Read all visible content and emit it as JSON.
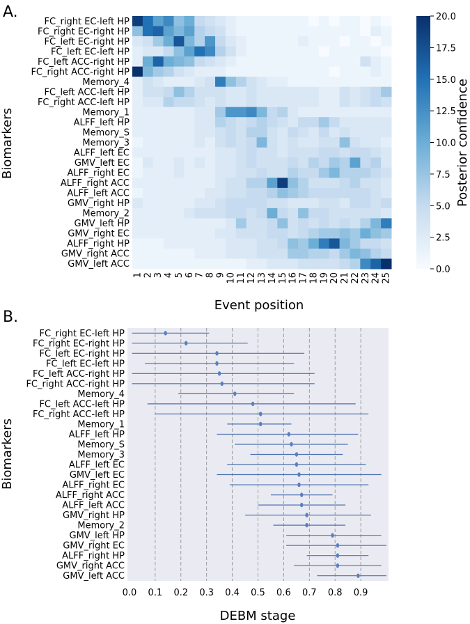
{
  "panel_labels": [
    "A.",
    "B."
  ],
  "chart_data": [
    {
      "type": "heatmap",
      "panel": "A.",
      "xlabel": "Event position",
      "ylabel": "Biomarkers",
      "colorbar_label": "Posterior confidence",
      "colorbar_range": [
        0,
        20
      ],
      "colorbar_ticks": [
        "0.0",
        "2.5",
        "5.0",
        "7.5",
        "10.0",
        "12.5",
        "15.0",
        "17.5",
        "20.0"
      ],
      "x_ticks": [
        "1",
        "2",
        "3",
        "4",
        "5",
        "6",
        "7",
        "8",
        "9",
        "10",
        "11",
        "12",
        "13",
        "14",
        "15",
        "16",
        "17",
        "18",
        "19",
        "20",
        "21",
        "22",
        "23",
        "24",
        "25"
      ],
      "biomarkers": [
        "FC_right EC-left HP",
        "FC_right EC-right HP",
        "FC_left EC-right HP",
        "FC_left EC-left HP",
        "FC_left ACC-right HP",
        "FC_right ACC-right HP",
        "Memory_4",
        "FC_left ACC-left HP",
        "FC_right ACC-left HP",
        "Memory_1",
        "ALFF_left HP",
        "Memory_S",
        "Memory_3",
        "ALFF_left EC",
        "GMV_left EC",
        "ALFF_right EC",
        "ALFF_right ACC",
        "ALFF_left ACC",
        "GMV_right HP",
        "Memory_2",
        "GMV_left HP",
        "GMV_right EC",
        "ALFF_right HP",
        "GMV_right ACC",
        "GMV_left ACC"
      ],
      "values": [
        [
          19,
          15,
          11,
          13,
          8,
          10,
          5,
          4,
          3,
          2,
          1,
          1,
          1,
          1,
          1,
          1,
          1,
          0,
          1,
          0,
          1,
          1,
          0,
          1,
          0
        ],
        [
          8,
          15,
          16,
          11,
          9,
          11,
          6,
          5,
          4,
          2,
          1,
          1,
          1,
          1,
          1,
          1,
          1,
          1,
          1,
          1,
          1,
          1,
          0,
          2,
          1
        ],
        [
          3,
          4,
          7,
          10,
          17,
          9,
          6,
          12,
          5,
          3,
          2,
          1,
          1,
          1,
          1,
          1,
          2,
          1,
          1,
          1,
          0,
          1,
          1,
          0,
          1
        ],
        [
          2,
          3,
          3,
          5,
          8,
          11,
          15,
          13,
          6,
          4,
          2,
          1,
          1,
          1,
          1,
          1,
          1,
          1,
          0,
          1,
          1,
          1,
          1,
          1,
          0
        ],
        [
          2,
          10,
          16,
          10,
          9,
          8,
          5,
          4,
          3,
          2,
          1,
          1,
          1,
          1,
          1,
          1,
          1,
          1,
          1,
          1,
          1,
          1,
          4,
          2,
          1
        ],
        [
          20,
          9,
          7,
          6,
          4,
          3,
          2,
          2,
          2,
          1,
          1,
          1,
          1,
          1,
          1,
          1,
          1,
          1,
          1,
          0,
          1,
          1,
          1,
          2,
          1
        ],
        [
          2,
          4,
          3,
          2,
          2,
          2,
          3,
          4,
          14,
          8,
          6,
          4,
          3,
          2,
          2,
          1,
          1,
          1,
          1,
          1,
          1,
          1,
          1,
          1,
          1
        ],
        [
          2,
          4,
          4,
          5,
          8,
          6,
          4,
          4,
          4,
          3,
          3,
          4,
          3,
          3,
          3,
          3,
          3,
          3,
          2,
          2,
          4,
          3,
          4,
          5,
          7
        ],
        [
          2,
          3,
          3,
          6,
          5,
          5,
          4,
          3,
          4,
          3,
          3,
          4,
          3,
          3,
          3,
          3,
          3,
          3,
          2,
          2,
          4,
          3,
          4,
          5,
          4
        ],
        [
          2,
          2,
          2,
          2,
          2,
          2,
          3,
          3,
          7,
          12,
          12,
          13,
          9,
          5,
          6,
          3,
          2,
          2,
          2,
          2,
          2,
          2,
          2,
          2,
          2
        ],
        [
          2,
          2,
          2,
          2,
          2,
          2,
          3,
          3,
          6,
          5,
          4,
          5,
          6,
          5,
          4,
          3,
          5,
          5,
          7,
          5,
          3,
          3,
          3,
          3,
          3
        ],
        [
          2,
          2,
          2,
          2,
          2,
          2,
          3,
          3,
          4,
          5,
          4,
          6,
          6,
          4,
          3,
          5,
          4,
          3,
          5,
          3,
          4,
          3,
          3,
          3,
          3
        ],
        [
          1,
          2,
          2,
          2,
          2,
          2,
          3,
          2,
          4,
          5,
          4,
          5,
          9,
          4,
          3,
          4,
          3,
          3,
          4,
          4,
          8,
          4,
          3,
          3,
          2
        ],
        [
          2,
          2,
          2,
          2,
          2,
          2,
          2,
          2,
          3,
          3,
          4,
          5,
          4,
          4,
          3,
          4,
          4,
          4,
          5,
          5,
          4,
          5,
          5,
          4,
          3
        ],
        [
          1,
          3,
          2,
          2,
          3,
          2,
          3,
          2,
          3,
          3,
          4,
          5,
          4,
          4,
          4,
          5,
          4,
          6,
          5,
          7,
          6,
          11,
          5,
          6,
          3
        ],
        [
          1,
          2,
          2,
          2,
          3,
          2,
          2,
          2,
          3,
          3,
          4,
          4,
          5,
          4,
          4,
          6,
          5,
          5,
          7,
          9,
          6,
          6,
          6,
          5,
          4
        ],
        [
          2,
          2,
          2,
          2,
          2,
          2,
          2,
          2,
          3,
          4,
          4,
          6,
          6,
          11,
          19,
          8,
          6,
          4,
          4,
          4,
          5,
          6,
          4,
          4,
          3
        ],
        [
          1,
          2,
          2,
          2,
          2,
          2,
          2,
          3,
          3,
          4,
          4,
          5,
          5,
          6,
          8,
          7,
          6,
          5,
          5,
          5,
          5,
          5,
          5,
          4,
          3
        ],
        [
          3,
          2,
          2,
          2,
          2,
          2,
          3,
          3,
          4,
          5,
          5,
          5,
          5,
          4,
          4,
          3,
          3,
          3,
          4,
          4,
          3,
          5,
          5,
          4,
          5
        ],
        [
          2,
          2,
          2,
          2,
          2,
          3,
          4,
          4,
          4,
          5,
          5,
          4,
          5,
          10,
          5,
          4,
          8,
          5,
          5,
          4,
          4,
          4,
          4,
          4,
          3
        ],
        [
          2,
          2,
          2,
          2,
          2,
          2,
          2,
          2,
          2,
          3,
          7,
          4,
          4,
          5,
          8,
          4,
          5,
          4,
          5,
          4,
          5,
          4,
          6,
          9,
          14
        ],
        [
          2,
          2,
          2,
          2,
          2,
          2,
          2,
          2,
          3,
          3,
          4,
          4,
          4,
          5,
          5,
          4,
          5,
          6,
          7,
          7,
          8,
          7,
          10,
          8,
          7
        ],
        [
          1,
          1,
          1,
          2,
          2,
          2,
          2,
          2,
          2,
          3,
          3,
          3,
          4,
          4,
          5,
          8,
          7,
          10,
          14,
          17,
          9,
          7,
          5,
          5,
          4
        ],
        [
          1,
          1,
          1,
          1,
          1,
          1,
          2,
          2,
          2,
          3,
          3,
          3,
          4,
          4,
          4,
          7,
          7,
          6,
          6,
          5,
          7,
          9,
          8,
          6,
          5
        ],
        [
          1,
          1,
          1,
          1,
          1,
          1,
          1,
          1,
          1,
          1,
          1,
          2,
          2,
          3,
          3,
          3,
          4,
          4,
          4,
          4,
          5,
          6,
          13,
          16,
          20
        ]
      ]
    },
    {
      "type": "scatter",
      "panel": "B.",
      "xlabel": "DEBM stage",
      "ylabel": "Biomarkers",
      "xlim": [
        0,
        1
      ],
      "x_ticks": [
        "0.0",
        "0.1",
        "0.2",
        "0.3",
        "0.4",
        "0.5",
        "0.6",
        "0.7",
        "0.8",
        "0.9"
      ],
      "biomarkers": [
        "FC_right EC-left HP",
        "FC_right EC-right HP",
        "FC_left EC-right HP",
        "FC_left EC-left HP",
        "FC_left ACC-right HP",
        "FC_right ACC-right HP",
        "Memory_4",
        "FC_left ACC-left HP",
        "FC_right ACC-left HP",
        "Memory_1",
        "ALFF_left HP",
        "Memory_S",
        "Memory_3",
        "ALFF_left EC",
        "GMV_left EC",
        "ALFF_right EC",
        "ALFF_right ACC",
        "ALFF_left ACC",
        "GMV_right HP",
        "Memory_2",
        "GMV_left HP",
        "GMV_right EC",
        "ALFF_right HP",
        "GMV_right ACC",
        "GMV_left ACC"
      ],
      "center": [
        0.14,
        0.22,
        0.34,
        0.34,
        0.35,
        0.36,
        0.41,
        0.48,
        0.51,
        0.51,
        0.62,
        0.63,
        0.65,
        0.65,
        0.66,
        0.66,
        0.67,
        0.67,
        0.69,
        0.69,
        0.79,
        0.81,
        0.81,
        0.81,
        0.89
      ],
      "low": [
        0.01,
        0.01,
        0.01,
        0.06,
        0.01,
        0.01,
        0.19,
        0.07,
        0.1,
        0.38,
        0.34,
        0.41,
        0.47,
        0.38,
        0.34,
        0.39,
        0.55,
        0.5,
        0.45,
        0.56,
        0.61,
        0.61,
        0.69,
        0.64,
        0.73
      ],
      "high": [
        0.31,
        0.46,
        0.68,
        0.64,
        0.72,
        0.72,
        0.64,
        0.88,
        0.93,
        0.63,
        0.89,
        0.85,
        0.83,
        0.92,
        0.98,
        0.93,
        0.79,
        0.84,
        0.94,
        0.84,
        0.98,
        1.0,
        0.93,
        0.98,
        1.0
      ]
    }
  ]
}
